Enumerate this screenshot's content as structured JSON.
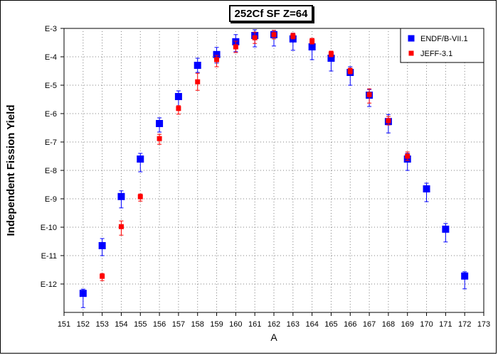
{
  "chart_data": {
    "type": "scatter",
    "title": "252Cf SF Z=64",
    "xlabel": "A",
    "ylabel": "Independent Fission Yield",
    "xlim": [
      151,
      173
    ],
    "ylim_exponent": [
      -13,
      -3
    ],
    "yscale": "log",
    "x_ticks": [
      "151",
      "152",
      "153",
      "154",
      "155",
      "156",
      "157",
      "158",
      "159",
      "160",
      "161",
      "162",
      "163",
      "164",
      "165",
      "166",
      "167",
      "168",
      "169",
      "170",
      "171",
      "172",
      "173"
    ],
    "y_ticks": [
      "E-3",
      "E-4",
      "E-5",
      "E-6",
      "E-7",
      "E-8",
      "E-9",
      "E-10",
      "E-11",
      "E-12"
    ],
    "grid": true,
    "legend_position": "top-right",
    "series": [
      {
        "name": "ENDF/B-VII.1",
        "color": "#0000ff",
        "marker": "square-large",
        "points": [
          {
            "x": 152,
            "log10_y": -12.33,
            "err": [
              0.5,
              0.15
            ]
          },
          {
            "x": 153,
            "log10_y": -10.65,
            "err": [
              0.35,
              0.25
            ]
          },
          {
            "x": 154,
            "log10_y": -8.92,
            "err": [
              0.4,
              0.2
            ]
          },
          {
            "x": 155,
            "log10_y": -7.6,
            "err": [
              0.45,
              0.2
            ]
          },
          {
            "x": 156,
            "log10_y": -6.35,
            "err": [
              0.3,
              0.2
            ]
          },
          {
            "x": 157,
            "log10_y": -5.4,
            "err": [
              0.35,
              0.2
            ]
          },
          {
            "x": 158,
            "log10_y": -4.3,
            "err": [
              0.25,
              0.25
            ]
          },
          {
            "x": 159,
            "log10_y": -3.92,
            "err": [
              0.3,
              0.25
            ]
          },
          {
            "x": 160,
            "log10_y": -3.47,
            "err": [
              0.35,
              0.25
            ]
          },
          {
            "x": 161,
            "log10_y": -3.25,
            "err": [
              0.4,
              0.2
            ]
          },
          {
            "x": 162,
            "log10_y": -3.22,
            "err": [
              0.4,
              0.15
            ]
          },
          {
            "x": 163,
            "log10_y": -3.37,
            "err": [
              0.4,
              0.2
            ]
          },
          {
            "x": 164,
            "log10_y": -3.65,
            "err": [
              0.45,
              0.3
            ]
          },
          {
            "x": 165,
            "log10_y": -4.05,
            "err": [
              0.45,
              0.2
            ]
          },
          {
            "x": 166,
            "log10_y": -4.55,
            "err": [
              0.45,
              0.2
            ]
          },
          {
            "x": 167,
            "log10_y": -5.35,
            "err": [
              0.4,
              0.2
            ]
          },
          {
            "x": 168,
            "log10_y": -6.28,
            "err": [
              0.4,
              0.25
            ]
          },
          {
            "x": 169,
            "log10_y": -7.6,
            "err": [
              0.4,
              0.2
            ]
          },
          {
            "x": 170,
            "log10_y": -8.65,
            "err": [
              0.45,
              0.2
            ]
          },
          {
            "x": 171,
            "log10_y": -10.07,
            "err": [
              0.45,
              0.2
            ]
          },
          {
            "x": 172,
            "log10_y": -11.72,
            "err": [
              0.45,
              0.15
            ]
          }
        ]
      },
      {
        "name": "JEFF-3.1",
        "color": "#ff0000",
        "marker": "square-small",
        "points": [
          {
            "x": 153,
            "log10_y": -11.73,
            "err": [
              0.15,
              0.1
            ]
          },
          {
            "x": 154,
            "log10_y": -9.98,
            "err": [
              0.3,
              0.2
            ]
          },
          {
            "x": 155,
            "log10_y": -8.93,
            "err": [
              0.15,
              0.1
            ]
          },
          {
            "x": 156,
            "log10_y": -6.88,
            "err": [
              0.2,
              0.15
            ]
          },
          {
            "x": 157,
            "log10_y": -5.82,
            "err": [
              0.2,
              0.1
            ]
          },
          {
            "x": 158,
            "log10_y": -4.88,
            "err": [
              0.3,
              0.3
            ]
          },
          {
            "x": 159,
            "log10_y": -4.1,
            "err": [
              0.25,
              0.15
            ]
          },
          {
            "x": 160,
            "log10_y": -3.65,
            "err": [
              0.2,
              0.2
            ]
          },
          {
            "x": 161,
            "log10_y": -3.33,
            "err": [
              0.2,
              0.2
            ]
          },
          {
            "x": 162,
            "log10_y": -3.22,
            "err": [
              0.15,
              0.15
            ]
          },
          {
            "x": 163,
            "log10_y": -3.27,
            "err": [
              0.1,
              0.1
            ]
          },
          {
            "x": 164,
            "log10_y": -3.45,
            "err": [
              0.1,
              0.1
            ]
          },
          {
            "x": 165,
            "log10_y": -3.9,
            "err": [
              0.1,
              0.1
            ]
          },
          {
            "x": 166,
            "log10_y": -4.5,
            "err": [
              0.1,
              0.1
            ]
          },
          {
            "x": 167,
            "log10_y": -5.33,
            "err": [
              0.3,
              0.2
            ]
          },
          {
            "x": 168,
            "log10_y": -6.25,
            "err": [
              0.15,
              0.15
            ]
          },
          {
            "x": 169,
            "log10_y": -7.5,
            "err": [
              0.15,
              0.15
            ]
          }
        ]
      }
    ]
  }
}
